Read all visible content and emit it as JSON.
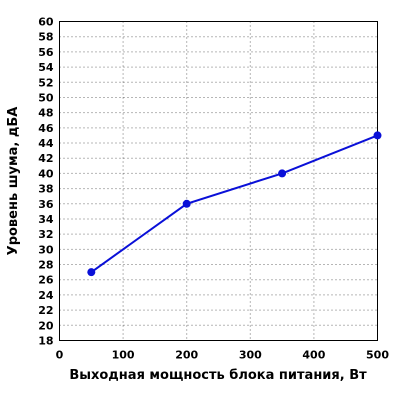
{
  "chart_data": {
    "type": "line",
    "xlabel": "Выходная мощность блока питания, Вт",
    "ylabel": "Уровень шума, дБА",
    "xlim": [
      0,
      500
    ],
    "ylim": [
      18,
      60
    ],
    "x_ticks": [
      0,
      100,
      200,
      300,
      400,
      500
    ],
    "y_ticks": [
      18,
      20,
      22,
      24,
      26,
      28,
      30,
      32,
      34,
      36,
      38,
      40,
      42,
      44,
      46,
      48,
      50,
      52,
      54,
      56,
      58,
      60
    ],
    "grid": true,
    "legend": "none",
    "series": [
      {
        "color": "#0a10d8",
        "x": [
          50,
          200,
          350,
          500
        ],
        "y": [
          27,
          36,
          40,
          45
        ]
      }
    ]
  }
}
